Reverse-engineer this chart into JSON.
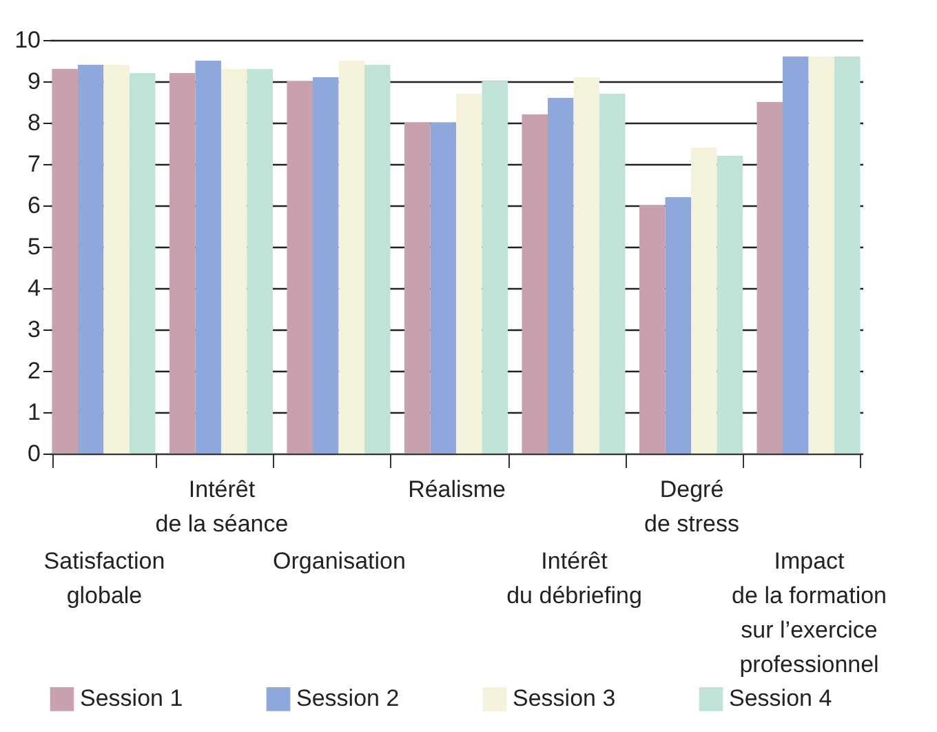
{
  "chart_data": {
    "type": "bar",
    "categories": [
      "Satisfaction\nglobale",
      "Intérêt\nde la séance",
      "Organisation",
      "Réalisme",
      "Intérêt\ndu débriefing",
      "Degré\nde stress",
      "Impact\nde la formation\nsur l’exercice\nprofessionnel"
    ],
    "series": [
      {
        "name": "Session 1",
        "color": "#c9a0ae",
        "values": [
          9.3,
          9.2,
          9.0,
          8.0,
          8.2,
          6.0,
          8.5
        ]
      },
      {
        "name": "Session 2",
        "color": "#8fa8dc",
        "values": [
          9.4,
          9.5,
          9.1,
          8.0,
          8.6,
          6.2,
          9.6
        ]
      },
      {
        "name": "Session 3",
        "color": "#f5f2dc",
        "values": [
          9.4,
          9.3,
          9.5,
          8.7,
          9.1,
          7.4,
          9.6
        ]
      },
      {
        "name": "Session 4",
        "color": "#bfe3d6",
        "values": [
          9.2,
          9.3,
          9.4,
          9.0,
          8.7,
          7.2,
          9.6
        ]
      }
    ],
    "ylim": [
      0,
      10
    ],
    "yticks": [
      0,
      1,
      2,
      3,
      4,
      5,
      6,
      7,
      8,
      9,
      10
    ],
    "grid": "y",
    "legend": "bottom"
  }
}
